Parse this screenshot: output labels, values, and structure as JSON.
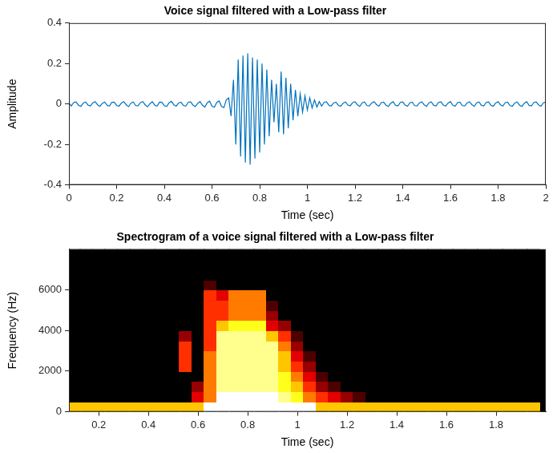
{
  "chart_data": [
    {
      "type": "line",
      "title": "Voice signal filtered with a Low-pass filter",
      "x_label": "Time (sec)",
      "y_label": "Amplitude",
      "color": "#0072bd",
      "grid": false,
      "xlim": [
        0,
        2
      ],
      "ylim": [
        -0.4,
        0.4
      ],
      "xticks": [
        0,
        0.2,
        0.4,
        0.6,
        0.8,
        1,
        1.2,
        1.4,
        1.6,
        1.8,
        2
      ],
      "yticks": [
        -0.4,
        -0.2,
        0,
        0.2,
        0.4
      ],
      "x": [
        0,
        0.01,
        0.02,
        0.03,
        0.04,
        0.05,
        0.06,
        0.07,
        0.08,
        0.09,
        0.1,
        0.11,
        0.12,
        0.13,
        0.14,
        0.15,
        0.16,
        0.17,
        0.18,
        0.19,
        0.2,
        0.21,
        0.22,
        0.23,
        0.24,
        0.25,
        0.26,
        0.27,
        0.28,
        0.29,
        0.3,
        0.31,
        0.32,
        0.33,
        0.34,
        0.35,
        0.36,
        0.37,
        0.38,
        0.39,
        0.4,
        0.41,
        0.42,
        0.43,
        0.44,
        0.45,
        0.46,
        0.47,
        0.48,
        0.49,
        0.5,
        0.51,
        0.52,
        0.53,
        0.54,
        0.55,
        0.56,
        0.57,
        0.58,
        0.59,
        0.6,
        0.61,
        0.62,
        0.63,
        0.64,
        0.65,
        0.66,
        0.67,
        0.68,
        0.69,
        0.7,
        0.71,
        0.72,
        0.73,
        0.74,
        0.75,
        0.76,
        0.77,
        0.78,
        0.79,
        0.8,
        0.81,
        0.82,
        0.83,
        0.84,
        0.85,
        0.86,
        0.87,
        0.88,
        0.89,
        0.9,
        0.91,
        0.92,
        0.93,
        0.94,
        0.95,
        0.96,
        0.97,
        0.98,
        0.99,
        1,
        1.01,
        1.02,
        1.03,
        1.04,
        1.05,
        1.06,
        1.07,
        1.08,
        1.09,
        1.1,
        1.11,
        1.12,
        1.13,
        1.14,
        1.15,
        1.16,
        1.17,
        1.18,
        1.19,
        1.2,
        1.21,
        1.22,
        1.23,
        1.24,
        1.25,
        1.26,
        1.27,
        1.28,
        1.29,
        1.3,
        1.31,
        1.32,
        1.33,
        1.34,
        1.35,
        1.36,
        1.37,
        1.38,
        1.39,
        1.4,
        1.41,
        1.42,
        1.43,
        1.44,
        1.45,
        1.46,
        1.47,
        1.48,
        1.49,
        1.5,
        1.51,
        1.52,
        1.53,
        1.54,
        1.55,
        1.56,
        1.57,
        1.58,
        1.59,
        1.6,
        1.61,
        1.62,
        1.63,
        1.64,
        1.65,
        1.66,
        1.67,
        1.68,
        1.69,
        1.7,
        1.71,
        1.72,
        1.73,
        1.74,
        1.75,
        1.76,
        1.77,
        1.78,
        1.79,
        1.8,
        1.81,
        1.82,
        1.83,
        1.84,
        1.85,
        1.86,
        1.87,
        1.88,
        1.89,
        1.9,
        1.91,
        1.92,
        1.93,
        1.94,
        1.95,
        1.96,
        1.97,
        1.98,
        1.99,
        2
      ],
      "values": [
        0.005,
        -0.01,
        0.008,
        0.01,
        -0.006,
        -0.012,
        0.004,
        0.01,
        -0.005,
        -0.01,
        0.006,
        0.012,
        -0.004,
        -0.012,
        0.003,
        0.01,
        -0.006,
        -0.01,
        0.008,
        0.009,
        -0.007,
        -0.011,
        0.005,
        0.012,
        -0.003,
        -0.013,
        0.004,
        0.01,
        -0.008,
        -0.009,
        0.007,
        0.012,
        -0.005,
        -0.014,
        0.002,
        0.011,
        -0.006,
        -0.01,
        0.009,
        0.008,
        -0.008,
        -0.012,
        0.006,
        0.013,
        -0.004,
        -0.011,
        0.005,
        0.009,
        -0.007,
        -0.01,
        0.008,
        0.011,
        -0.005,
        -0.013,
        0.003,
        0.012,
        -0.006,
        -0.015,
        0.006,
        0.014,
        -0.01,
        -0.016,
        0.008,
        0.015,
        -0.012,
        -0.018,
        0.02,
        0.03,
        -0.06,
        0.12,
        -0.2,
        0.22,
        -0.26,
        0.24,
        -0.29,
        0.25,
        -0.3,
        0.23,
        -0.27,
        0.22,
        -0.24,
        0.2,
        -0.2,
        0.17,
        -0.16,
        0.12,
        -0.09,
        0.1,
        -0.14,
        0.16,
        -0.15,
        0.13,
        -0.12,
        0.1,
        -0.08,
        0.07,
        -0.06,
        0.05,
        -0.04,
        0.04,
        -0.03,
        0.03,
        -0.02,
        0.02,
        -0.015,
        0.012,
        -0.01,
        0.008,
        0.011,
        -0.006,
        -0.01,
        0.005,
        0.009,
        -0.007,
        -0.011,
        0.004,
        0.01,
        -0.005,
        -0.009,
        0.007,
        0.011,
        -0.004,
        -0.012,
        0.006,
        0.01,
        -0.008,
        -0.01,
        0.005,
        0.012,
        -0.003,
        -0.011,
        0.007,
        0.009,
        -0.006,
        -0.012,
        0.004,
        0.011,
        -0.007,
        -0.009,
        0.008,
        0.01,
        -0.005,
        -0.011,
        0.006,
        0.009,
        -0.008,
        -0.01,
        0.005,
        0.011,
        -0.004,
        -0.012,
        0.006,
        0.01,
        -0.007,
        -0.009,
        0.008,
        0.011,
        -0.005,
        -0.01,
        0.004,
        0.012,
        -0.006,
        -0.011,
        0.007,
        0.009,
        -0.008,
        -0.01,
        0.005,
        0.011,
        -0.003,
        -0.012,
        0.006,
        0.01,
        -0.007,
        -0.009,
        0.008,
        0.01,
        -0.006,
        -0.011,
        0.005,
        0.012,
        -0.004,
        -0.01,
        0.007,
        0.009,
        -0.008,
        -0.011,
        0.005,
        0.01,
        -0.006,
        -0.012,
        0.004,
        0.011,
        -0.007,
        -0.009,
        0.008,
        0.01,
        -0.005,
        -0.011,
        0.006,
        0.009
      ]
    },
    {
      "type": "heatmap",
      "title": "Spectrogram of a voice signal filtered with a Low-pass filter",
      "x_label": "Time (sec)",
      "y_label": "Frequency (Hz)",
      "color": "hot",
      "grid": false,
      "xlim": [
        0.08,
        2
      ],
      "ylim": [
        0,
        8000
      ],
      "xticks": [
        0.2,
        0.4,
        0.6,
        0.8,
        1,
        1.2,
        1.4,
        1.6,
        1.8
      ],
      "yticks": [
        0,
        2000,
        4000,
        6000
      ],
      "x": [
        0.1,
        0.15,
        0.2,
        0.25,
        0.3,
        0.35,
        0.4,
        0.45,
        0.5,
        0.55,
        0.6,
        0.65,
        0.7,
        0.75,
        0.8,
        0.85,
        0.9,
        0.95,
        1,
        1.05,
        1.1,
        1.15,
        1.2,
        1.25,
        1.3,
        1.35,
        1.4,
        1.45,
        1.5,
        1.55,
        1.6,
        1.65,
        1.7,
        1.75,
        1.8,
        1.85,
        1.9,
        1.95
      ],
      "y": [
        250,
        750,
        1250,
        1750,
        2250,
        2750,
        3250,
        3750,
        4250,
        4750,
        5250,
        5750,
        6250,
        6750,
        7250,
        7750
      ],
      "cells": [
        [
          6,
          6,
          6,
          6,
          6,
          6,
          6,
          6,
          6,
          6,
          6,
          9,
          9,
          9,
          9,
          9,
          9,
          9,
          9,
          9,
          6,
          6,
          6,
          6,
          6,
          6,
          6,
          6,
          6,
          6,
          6,
          6,
          6,
          6,
          6,
          6,
          6,
          6
        ],
        [
          0,
          0,
          0,
          0,
          0,
          0,
          0,
          0,
          0,
          0,
          3,
          5,
          9,
          9,
          9,
          9,
          9,
          8,
          7,
          5,
          4,
          3,
          2,
          1,
          0,
          0,
          0,
          0,
          0,
          0,
          0,
          0,
          0,
          0,
          0,
          0,
          0,
          0
        ],
        [
          0,
          0,
          0,
          0,
          0,
          0,
          0,
          0,
          0,
          0,
          2,
          5,
          8,
          8,
          8,
          8,
          8,
          7,
          6,
          4,
          2,
          1,
          0,
          0,
          0,
          0,
          0,
          0,
          0,
          0,
          0,
          0,
          0,
          0,
          0,
          0,
          0,
          0
        ],
        [
          0,
          0,
          0,
          0,
          0,
          0,
          0,
          0,
          0,
          0,
          0,
          5,
          8,
          8,
          8,
          8,
          8,
          7,
          5,
          3,
          1,
          0,
          0,
          0,
          0,
          0,
          0,
          0,
          0,
          0,
          0,
          0,
          0,
          0,
          0,
          0,
          0,
          0
        ],
        [
          0,
          0,
          0,
          0,
          0,
          0,
          0,
          0,
          0,
          4,
          0,
          5,
          8,
          8,
          8,
          8,
          8,
          6,
          4,
          2,
          0,
          0,
          0,
          0,
          0,
          0,
          0,
          0,
          0,
          0,
          0,
          0,
          0,
          0,
          0,
          0,
          0,
          0
        ],
        [
          0,
          0,
          0,
          0,
          0,
          0,
          0,
          0,
          0,
          4,
          0,
          5,
          8,
          8,
          8,
          8,
          8,
          6,
          3,
          1,
          0,
          0,
          0,
          0,
          0,
          0,
          0,
          0,
          0,
          0,
          0,
          0,
          0,
          0,
          0,
          0,
          0,
          0
        ],
        [
          0,
          0,
          0,
          0,
          0,
          0,
          0,
          0,
          0,
          4,
          0,
          4,
          8,
          8,
          8,
          8,
          8,
          5,
          2,
          0,
          0,
          0,
          0,
          0,
          0,
          0,
          0,
          0,
          0,
          0,
          0,
          0,
          0,
          0,
          0,
          0,
          0,
          0
        ],
        [
          0,
          0,
          0,
          0,
          0,
          0,
          0,
          0,
          0,
          2,
          0,
          4,
          8,
          8,
          8,
          8,
          6,
          4,
          1,
          0,
          0,
          0,
          0,
          0,
          0,
          0,
          0,
          0,
          0,
          0,
          0,
          0,
          0,
          0,
          0,
          0,
          0,
          0
        ],
        [
          0,
          0,
          0,
          0,
          0,
          0,
          0,
          0,
          0,
          0,
          0,
          4,
          6,
          7,
          7,
          7,
          3,
          2,
          0,
          0,
          0,
          0,
          0,
          0,
          0,
          0,
          0,
          0,
          0,
          0,
          0,
          0,
          0,
          0,
          0,
          0,
          0,
          0
        ],
        [
          0,
          0,
          0,
          0,
          0,
          0,
          0,
          0,
          0,
          0,
          0,
          4,
          4,
          5,
          5,
          5,
          2,
          0,
          0,
          0,
          0,
          0,
          0,
          0,
          0,
          0,
          0,
          0,
          0,
          0,
          0,
          0,
          0,
          0,
          0,
          0,
          0,
          0
        ],
        [
          0,
          0,
          0,
          0,
          0,
          0,
          0,
          0,
          0,
          0,
          0,
          4,
          4,
          5,
          5,
          5,
          1,
          0,
          0,
          0,
          0,
          0,
          0,
          0,
          0,
          0,
          0,
          0,
          0,
          0,
          0,
          0,
          0,
          0,
          0,
          0,
          0,
          0
        ],
        [
          0,
          0,
          0,
          0,
          0,
          0,
          0,
          0,
          0,
          0,
          0,
          4,
          3,
          5,
          5,
          5,
          0,
          0,
          0,
          0,
          0,
          0,
          0,
          0,
          0,
          0,
          0,
          0,
          0,
          0,
          0,
          0,
          0,
          0,
          0,
          0,
          0,
          0
        ],
        [
          0,
          0,
          0,
          0,
          0,
          0,
          0,
          0,
          0,
          0,
          0,
          1,
          0,
          0,
          0,
          0,
          0,
          0,
          0,
          0,
          0,
          0,
          0,
          0,
          0,
          0,
          0,
          0,
          0,
          0,
          0,
          0,
          0,
          0,
          0,
          0,
          0,
          0
        ],
        [
          0,
          0,
          0,
          0,
          0,
          0,
          0,
          0,
          0,
          0,
          0,
          0,
          0,
          0,
          0,
          0,
          0,
          0,
          0,
          0,
          0,
          0,
          0,
          0,
          0,
          0,
          0,
          0,
          0,
          0,
          0,
          0,
          0,
          0,
          0,
          0,
          0,
          0
        ],
        [
          0,
          0,
          0,
          0,
          0,
          0,
          0,
          0,
          0,
          0,
          0,
          0,
          0,
          0,
          0,
          0,
          0,
          0,
          0,
          0,
          0,
          0,
          0,
          0,
          0,
          0,
          0,
          0,
          0,
          0,
          0,
          0,
          0,
          0,
          0,
          0,
          0,
          0
        ],
        [
          0,
          0,
          0,
          0,
          0,
          0,
          0,
          0,
          0,
          0,
          0,
          0,
          0,
          0,
          0,
          0,
          0,
          0,
          0,
          0,
          0,
          0,
          0,
          0,
          0,
          0,
          0,
          0,
          0,
          0,
          0,
          0,
          0,
          0,
          0,
          0,
          0,
          0
        ]
      ]
    }
  ]
}
